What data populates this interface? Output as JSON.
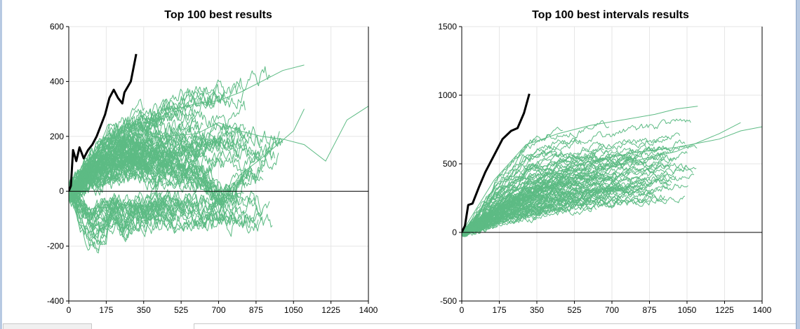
{
  "colors": {
    "best": "#000000",
    "others": "#5dbb84",
    "grid": "#e6e6e6",
    "window_frame": "#b7c9e2"
  },
  "chart_data": [
    {
      "type": "line",
      "title": "Top 100 best results",
      "xlabel": "",
      "ylabel": "",
      "xlim": [
        0,
        1400
      ],
      "ylim": [
        -400,
        600
      ],
      "xticks": [
        0,
        175,
        350,
        525,
        700,
        875,
        1050,
        1225,
        1400
      ],
      "yticks": [
        -400,
        -200,
        0,
        200,
        400,
        600
      ],
      "grid": true,
      "zero_line": true,
      "series_count": 100,
      "series": [
        {
          "role": "best",
          "color": "#000000",
          "x": [
            0,
            10,
            20,
            35,
            50,
            70,
            90,
            110,
            130,
            150,
            170,
            190,
            210,
            230,
            250,
            260,
            275,
            290,
            300,
            315
          ],
          "y": [
            0,
            20,
            150,
            110,
            160,
            120,
            150,
            170,
            200,
            240,
            280,
            340,
            370,
            340,
            320,
            360,
            380,
            400,
            440,
            500
          ]
        },
        {
          "role": "other",
          "color": "#5dbb84",
          "x": [
            0,
            100,
            200,
            300,
            400,
            500,
            600,
            700,
            800,
            900,
            1000,
            1100
          ],
          "y": [
            0,
            120,
            200,
            240,
            260,
            300,
            320,
            330,
            360,
            400,
            440,
            460
          ]
        },
        {
          "role": "other",
          "color": "#5dbb84",
          "x": [
            0,
            150,
            300,
            450,
            600,
            700,
            800,
            900,
            1000,
            1100,
            1200,
            1300,
            1400
          ],
          "y": [
            0,
            180,
            230,
            200,
            210,
            250,
            220,
            200,
            190,
            170,
            110,
            260,
            310
          ]
        },
        {
          "role": "other",
          "color": "#5dbb84",
          "x": [
            0,
            100,
            200,
            300,
            400,
            500,
            600,
            650,
            700,
            750,
            800,
            900,
            1050,
            1100
          ],
          "y": [
            0,
            80,
            120,
            150,
            120,
            100,
            60,
            10,
            -40,
            0,
            60,
            120,
            220,
            300
          ]
        },
        {
          "role": "other",
          "color": "#5dbb84",
          "x": [
            0,
            50,
            100,
            150,
            200,
            250,
            300
          ],
          "y": [
            0,
            -120,
            -180,
            -140,
            -80,
            -150,
            -100
          ]
        }
      ]
    },
    {
      "type": "line",
      "title": "Top 100 best intervals results",
      "xlabel": "",
      "ylabel": "",
      "xlim": [
        0,
        1400
      ],
      "ylim": [
        -500,
        1500
      ],
      "xticks": [
        0,
        175,
        350,
        525,
        700,
        875,
        1050,
        1225,
        1400
      ],
      "yticks": [
        -500,
        0,
        500,
        1000,
        1500
      ],
      "grid": true,
      "zero_line": true,
      "series_count": 100,
      "series": [
        {
          "role": "best",
          "color": "#000000",
          "x": [
            0,
            15,
            30,
            50,
            80,
            110,
            150,
            190,
            230,
            260,
            290,
            315
          ],
          "y": [
            0,
            50,
            200,
            210,
            330,
            440,
            560,
            680,
            740,
            760,
            870,
            1010
          ]
        },
        {
          "role": "other",
          "color": "#5dbb84",
          "x": [
            0,
            200,
            400,
            600,
            800,
            1000,
            1200,
            1300,
            1400
          ],
          "y": [
            0,
            260,
            420,
            520,
            580,
            620,
            680,
            740,
            770
          ]
        },
        {
          "role": "other",
          "color": "#5dbb84",
          "x": [
            0,
            150,
            300,
            450,
            600,
            750,
            900,
            1000,
            1100
          ],
          "y": [
            0,
            380,
            640,
            720,
            780,
            820,
            860,
            900,
            920
          ]
        },
        {
          "role": "other",
          "color": "#5dbb84",
          "x": [
            0,
            200,
            400,
            600,
            800,
            1000,
            1200,
            1300
          ],
          "y": [
            0,
            200,
            330,
            430,
            520,
            590,
            720,
            800
          ]
        }
      ]
    }
  ]
}
